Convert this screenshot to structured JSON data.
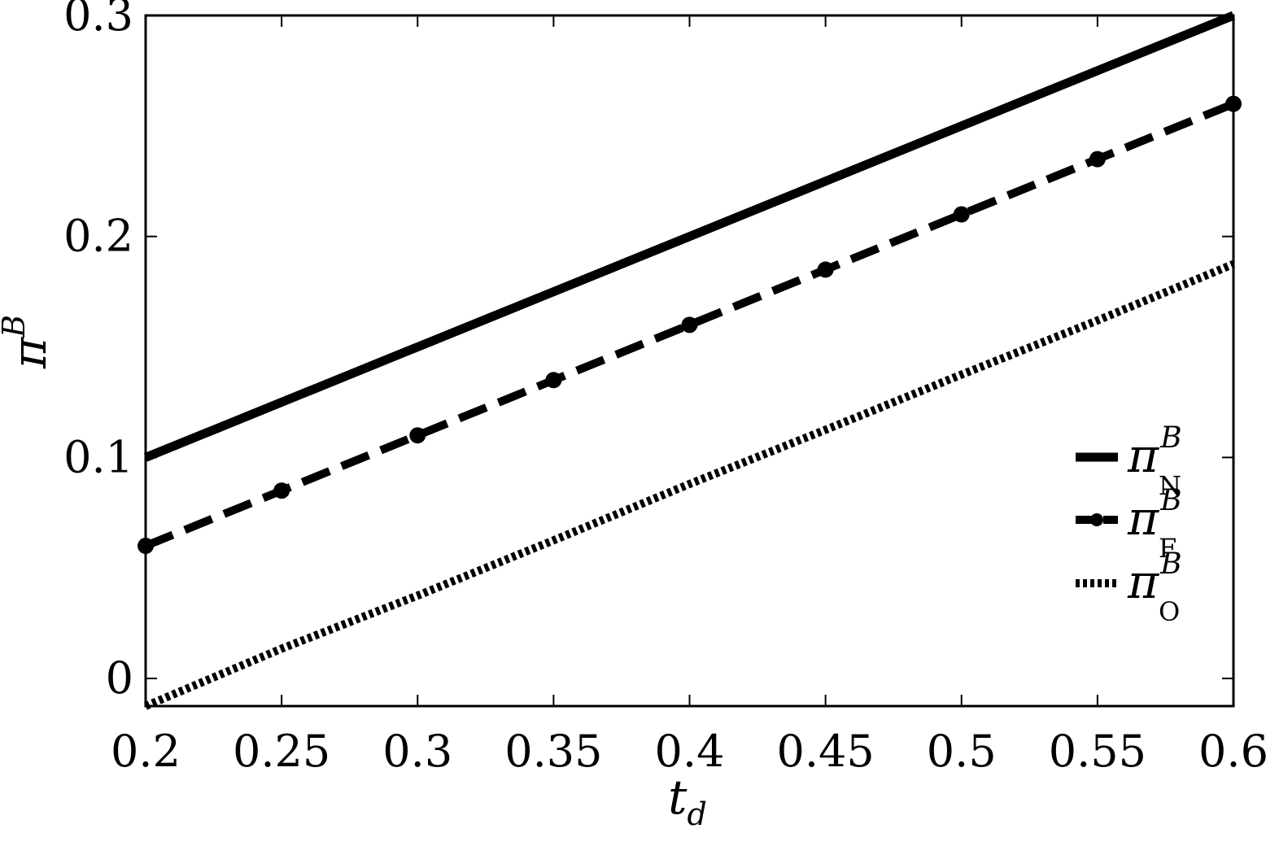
{
  "chart_data": {
    "type": "line",
    "title": "",
    "xlabel": {
      "main": "t",
      "sub": "d"
    },
    "ylabel": {
      "main": "π",
      "sup": "B"
    },
    "xlim": [
      0.2,
      0.6
    ],
    "ylim": [
      -0.0125,
      0.3
    ],
    "xticks": [
      "0.2",
      "0.25",
      "0.3",
      "0.35",
      "0.4",
      "0.45",
      "0.5",
      "0.55",
      "0.6"
    ],
    "yticks": [
      "0",
      "0.1",
      "0.2",
      "0.3"
    ],
    "grid": false,
    "legend_position": "right",
    "series": [
      {
        "name": "π_N^B",
        "legend": {
          "main": "π",
          "sub": "N",
          "sup": "B"
        },
        "style": "solid",
        "x": [
          0.2,
          0.6
        ],
        "y": [
          0.1,
          0.3
        ]
      },
      {
        "name": "π_F^B",
        "legend": {
          "main": "π",
          "sub": "F",
          "sup": "B"
        },
        "style": "dashed-markers",
        "x": [
          0.2,
          0.25,
          0.3,
          0.35,
          0.4,
          0.45,
          0.5,
          0.55,
          0.6
        ],
        "y": [
          0.06,
          0.085,
          0.11,
          0.135,
          0.16,
          0.185,
          0.21,
          0.235,
          0.26
        ]
      },
      {
        "name": "π_O^B",
        "legend": {
          "main": "π",
          "sub": "O",
          "sup": "B"
        },
        "style": "dotted",
        "x": [
          0.2,
          0.25,
          0.3,
          0.35,
          0.4,
          0.45,
          0.5,
          0.55,
          0.6
        ],
        "y": [
          -0.0125,
          0.0135,
          0.0375,
          0.0625,
          0.088,
          0.1125,
          0.1375,
          0.162,
          0.1875
        ]
      }
    ],
    "colors": {
      "line": "#000000",
      "background": "#ffffff"
    }
  }
}
